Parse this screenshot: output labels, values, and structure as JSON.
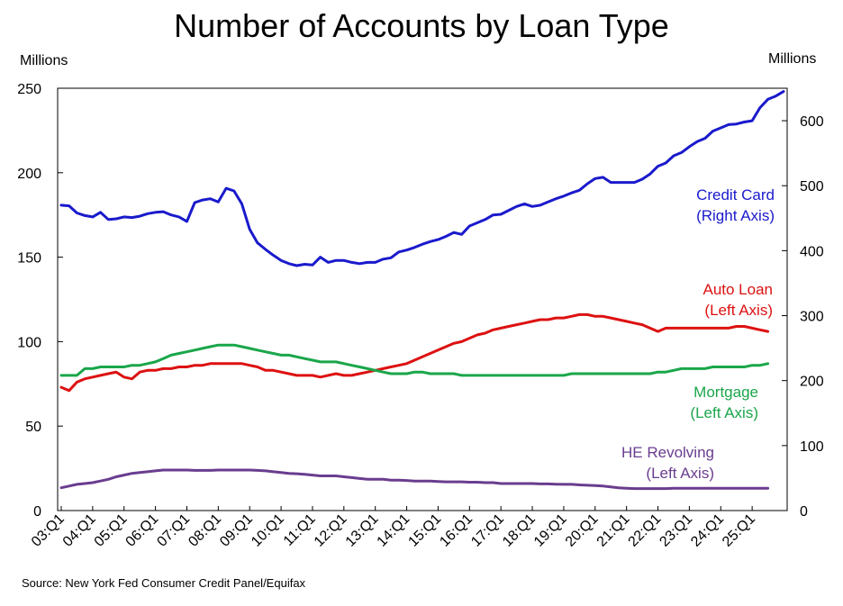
{
  "title": "Number of Accounts by Loan Type",
  "left_axis_unit": "Millions",
  "right_axis_unit": "Millions",
  "source": "Source: New York Fed Consumer Credit Panel/Equifax",
  "chart_data": {
    "type": "line",
    "title": "Number of Accounts by Loan Type",
    "xlabel": "",
    "x_tick_labels": [
      "03:Q1",
      "04:Q1",
      "05:Q1",
      "06:Q1",
      "07:Q1",
      "08:Q1",
      "09:Q1",
      "10:Q1",
      "11:Q1",
      "12:Q1",
      "13:Q1",
      "14:Q1",
      "15:Q1",
      "16:Q1",
      "17:Q1",
      "18:Q1",
      "19:Q1",
      "20:Q1",
      "21:Q1",
      "22:Q1",
      "23:Q1",
      "24:Q1",
      "25:Q1"
    ],
    "x_start": "03:Q1",
    "left_axis": {
      "label": "Millions",
      "ylim": [
        0,
        250
      ],
      "ticks": [
        0,
        50,
        100,
        150,
        200,
        250
      ]
    },
    "right_axis": {
      "label": "Millions",
      "ylim": [
        0,
        650
      ],
      "ticks": [
        0,
        100,
        200,
        300,
        400,
        500,
        600
      ]
    },
    "grid": false,
    "series": [
      {
        "name": "Credit Card",
        "label_lines": [
          "Credit Card",
          "(Right Axis)"
        ],
        "axis": "right",
        "color": "#1a1acc",
        "values": [
          470,
          469,
          458,
          454,
          452,
          459,
          448,
          449,
          452,
          451,
          453,
          457,
          459,
          460,
          455,
          452,
          445,
          474,
          478,
          480,
          475,
          496,
          492,
          472,
          433,
          412,
          402,
          393,
          385,
          380,
          377,
          379,
          378,
          390,
          382,
          385,
          385,
          382,
          380,
          382,
          382,
          387,
          389,
          398,
          401,
          405,
          410,
          414,
          417,
          422,
          428,
          425,
          438,
          443,
          448,
          455,
          456,
          462,
          468,
          472,
          468,
          470,
          475,
          480,
          484,
          489,
          493,
          503,
          511,
          513,
          505,
          505,
          505,
          505,
          510,
          518,
          530,
          535,
          546,
          551,
          560,
          568,
          573,
          584,
          589,
          594,
          595,
          598,
          600,
          620,
          633,
          638,
          645
        ]
      },
      {
        "name": "Auto Loan",
        "label_lines": [
          "Auto Loan",
          "(Left Axis)"
        ],
        "axis": "left",
        "color": "#dd1111",
        "values": [
          73,
          71,
          76,
          78,
          79,
          80,
          81,
          82,
          79,
          78,
          82,
          83,
          83,
          84,
          84,
          85,
          85,
          86,
          86,
          87,
          87,
          87,
          87,
          87,
          86,
          85,
          83,
          83,
          82,
          81,
          80,
          80,
          80,
          79,
          80,
          81,
          80,
          80,
          81,
          82,
          83,
          84,
          85,
          86,
          87,
          89,
          91,
          93,
          95,
          97,
          99,
          100,
          102,
          104,
          105,
          107,
          108,
          109,
          110,
          111,
          112,
          113,
          113,
          114,
          114,
          115,
          116,
          116,
          115,
          115,
          114,
          113,
          112,
          111,
          110,
          108,
          106,
          108,
          108,
          108,
          108,
          108,
          108,
          108,
          108,
          108,
          109,
          109,
          108,
          107,
          106
        ]
      },
      {
        "name": "Mortgage",
        "label_lines": [
          "Mortgage",
          "(Left Axis)"
        ],
        "axis": "left",
        "color": "#1aa64a",
        "values": [
          80,
          80,
          80,
          84,
          84,
          85,
          85,
          85,
          85,
          86,
          86,
          87,
          88,
          90,
          92,
          93,
          94,
          95,
          96,
          97,
          98,
          98,
          98,
          97,
          96,
          95,
          94,
          93,
          92,
          92,
          91,
          90,
          89,
          88,
          88,
          88,
          87,
          86,
          85,
          84,
          83,
          82,
          81,
          81,
          81,
          82,
          82,
          81,
          81,
          81,
          81,
          80,
          80,
          80,
          80,
          80,
          80,
          80,
          80,
          80,
          80,
          80,
          80,
          80,
          80,
          81,
          81,
          81,
          81,
          81,
          81,
          81,
          81,
          81,
          81,
          81,
          82,
          82,
          83,
          84,
          84,
          84,
          84,
          85,
          85,
          85,
          85,
          85,
          86,
          86,
          87
        ]
      },
      {
        "name": "HE Revolving",
        "label_lines": [
          "HE Revolving",
          "(Left Axis)"
        ],
        "axis": "left",
        "color": "#6a3d8f",
        "values": [
          13.5,
          14.5,
          15.5,
          16,
          16.5,
          17.5,
          18.5,
          20,
          21,
          22,
          22.5,
          23,
          23.5,
          24,
          24,
          24,
          24,
          23.8,
          23.8,
          23.8,
          24,
          24,
          24,
          24,
          24,
          23.8,
          23.5,
          23,
          22.5,
          22,
          21.8,
          21.5,
          21,
          20.5,
          20.5,
          20.5,
          20,
          19.5,
          19,
          18.5,
          18.5,
          18.5,
          18,
          18,
          17.8,
          17.5,
          17.5,
          17.5,
          17.2,
          17,
          17,
          17,
          16.8,
          16.8,
          16.5,
          16.5,
          16,
          16,
          16,
          16,
          16,
          15.8,
          15.8,
          15.6,
          15.5,
          15.5,
          15.2,
          15,
          14.8,
          14.5,
          14,
          13.5,
          13.2,
          13,
          13,
          13,
          13,
          13,
          13.2,
          13.2,
          13.2,
          13.2,
          13.2,
          13.2,
          13.2,
          13.2,
          13.2,
          13.2,
          13.2,
          13.2,
          13.2
        ]
      }
    ]
  }
}
